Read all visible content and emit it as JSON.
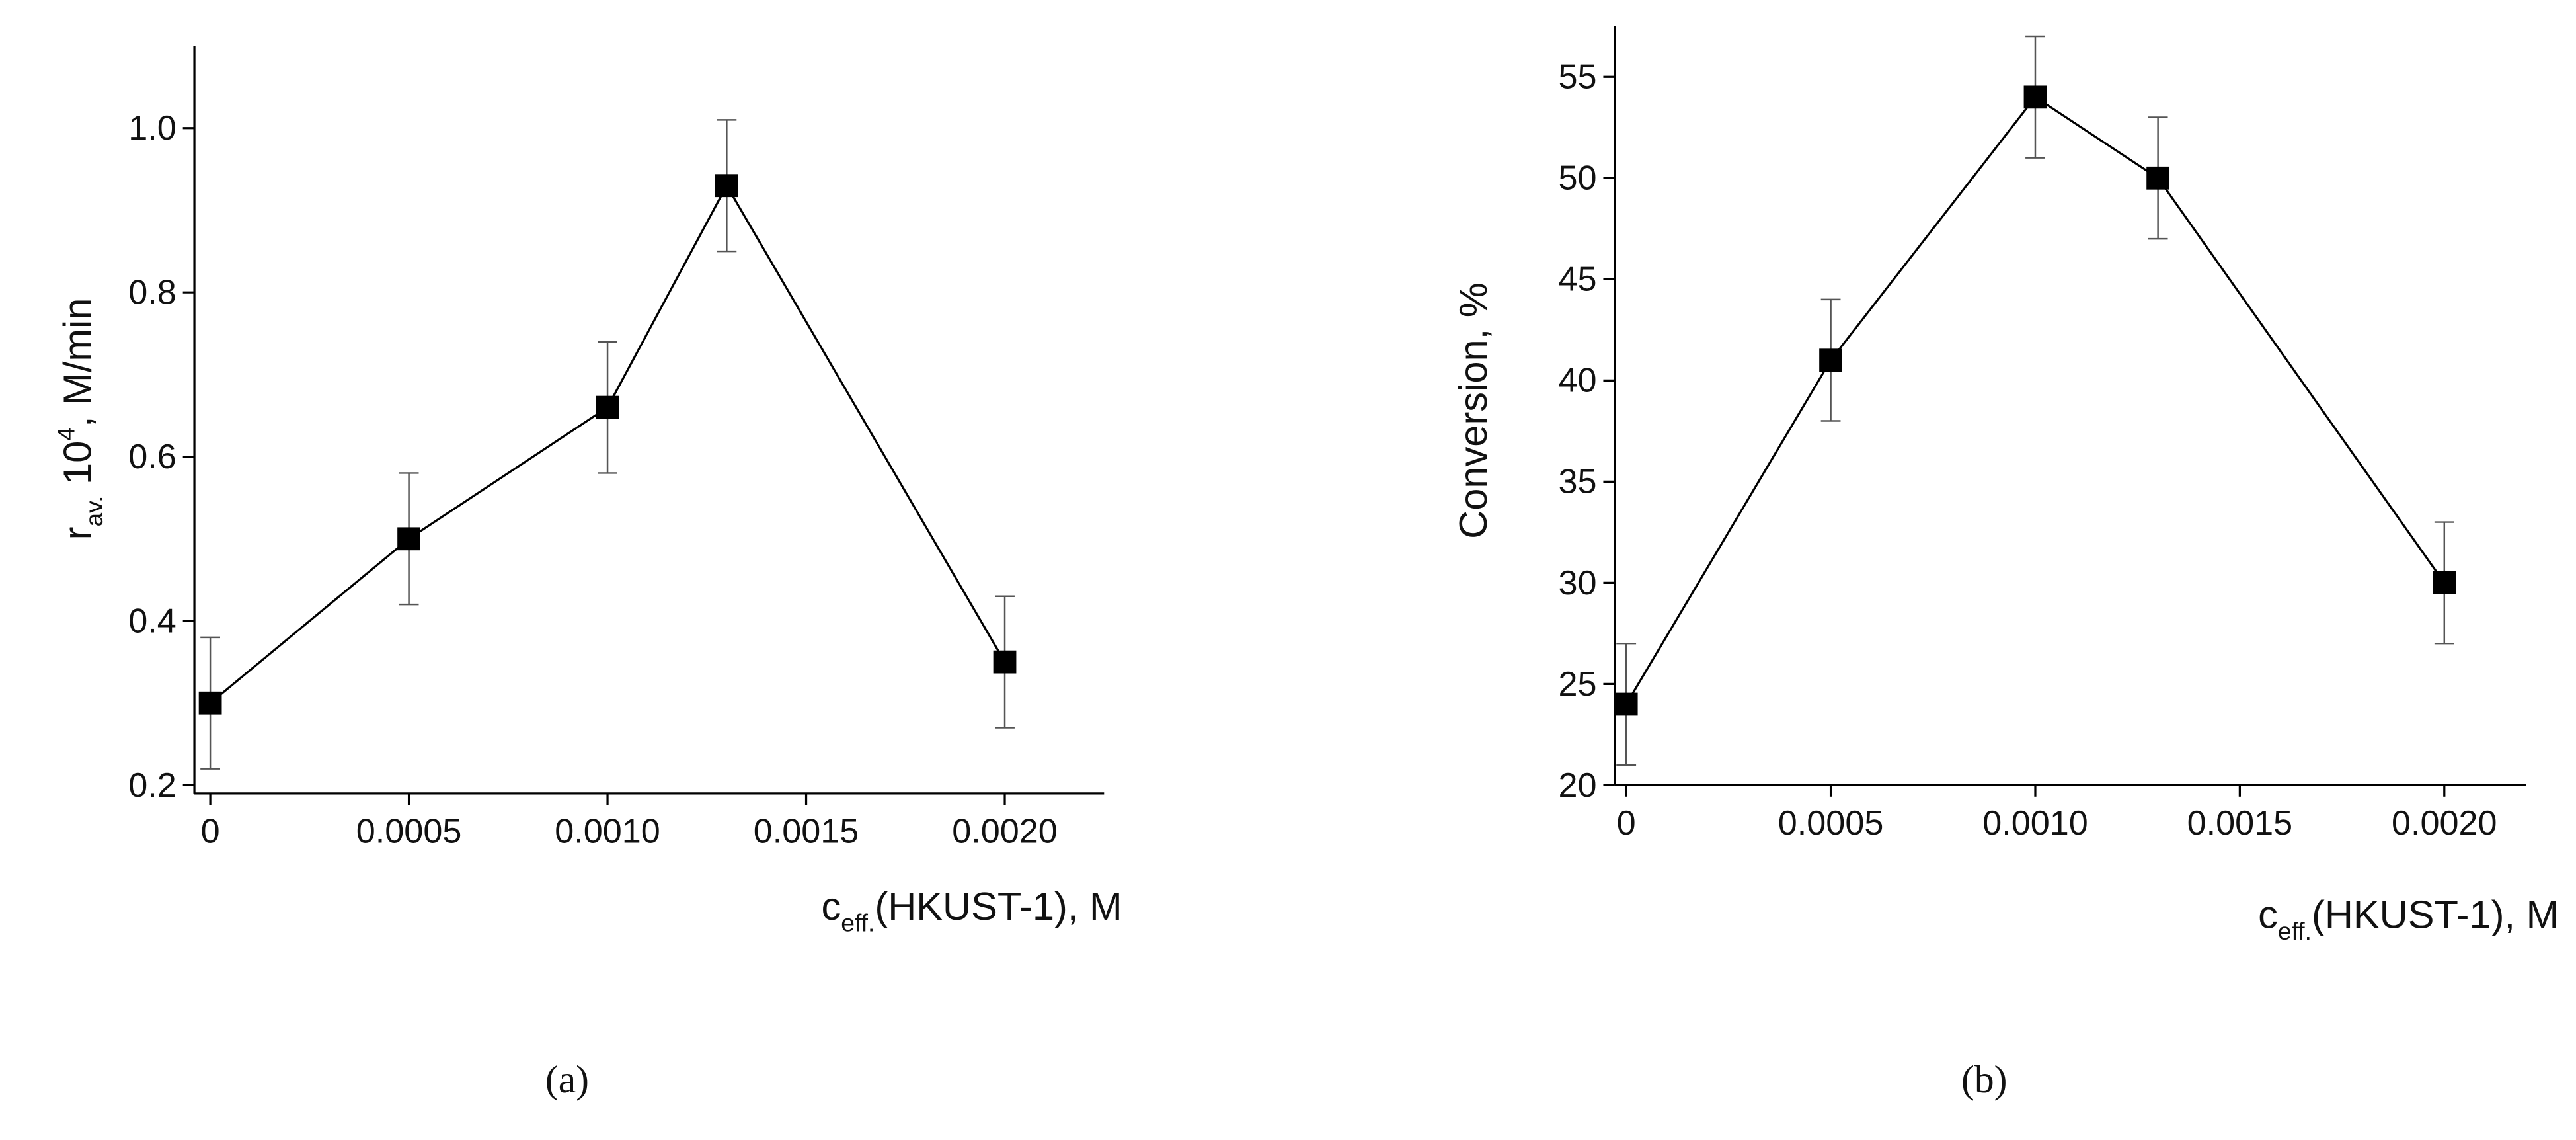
{
  "chart_data": [
    {
      "type": "line",
      "caption": "(a)",
      "x_label": {
        "main": "c",
        "sub": "eff.",
        "rest": "(HKUST-1), M"
      },
      "y_label": {
        "main": "r",
        "sub": "av.",
        "mid": " 10",
        "sup": "4",
        "rest": ", M/min"
      },
      "x": [
        0,
        0.0005,
        0.001,
        0.0013,
        0.002
      ],
      "values": [
        0.3,
        0.5,
        0.66,
        0.93,
        0.35
      ],
      "errors": [
        0.08,
        0.08,
        0.08,
        0.08,
        0.08
      ],
      "color": "#000000",
      "xlim": [
        -4e-05,
        0.00225
      ],
      "xticks": [
        0,
        0.0005,
        {
          "value": 0.001,
          "label": "0.0010"
        },
        0.0015,
        {
          "value": 0.002,
          "label": "0.0020"
        }
      ],
      "ylim": [
        0.19,
        1.1
      ],
      "yticks": [
        0.2,
        0.4,
        0.6,
        0.8,
        {
          "value": 1.0,
          "label": "1.0"
        }
      ]
    },
    {
      "type": "line",
      "caption": "(b)",
      "x_label": {
        "main": "c",
        "sub": "eff.",
        "rest": "(HKUST-1), M"
      },
      "y_label": {
        "main": "Conversion, %"
      },
      "x": [
        0,
        0.0005,
        0.001,
        0.0013,
        0.002
      ],
      "values": [
        24,
        41,
        54,
        50,
        30
      ],
      "errors": [
        3,
        3,
        3,
        3,
        3
      ],
      "color": "#000000",
      "xlim": [
        -2.8e-05,
        0.0022
      ],
      "xticks": [
        0,
        0.0005,
        {
          "value": 0.001,
          "label": "0.0010"
        },
        0.0015,
        {
          "value": 0.002,
          "label": "0.0020"
        }
      ],
      "ylim": [
        20,
        57.5
      ],
      "yticks": [
        20,
        25,
        30,
        35,
        40,
        45,
        50,
        55
      ]
    }
  ]
}
